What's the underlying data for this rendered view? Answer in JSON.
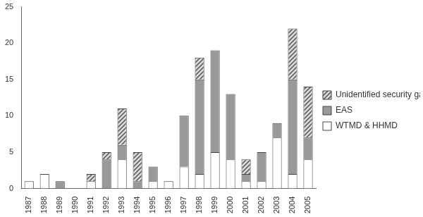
{
  "chart_data": {
    "type": "bar",
    "stacked": true,
    "grid": false,
    "legend": "right",
    "categories": [
      "1987",
      "1988",
      "1989",
      "1990",
      "1991",
      "1992",
      "1993",
      "1994",
      "1995",
      "1996",
      "1997",
      "1998",
      "1999",
      "2000",
      "2001",
      "2002",
      "2003",
      "2004",
      "2005"
    ],
    "series": [
      {
        "name": "WTMD & HHMD",
        "color": "#ffffff",
        "values": [
          1,
          2,
          0,
          0,
          1,
          0,
          4,
          0,
          1,
          1,
          3,
          2,
          5,
          4,
          1,
          1,
          7,
          2,
          4
        ]
      },
      {
        "name": "EAS",
        "color": "#999999",
        "values": [
          0,
          0,
          1,
          0,
          0,
          4,
          2,
          1,
          2,
          0,
          7,
          13,
          14,
          9,
          1,
          4,
          2,
          13,
          3
        ]
      },
      {
        "name": "Unidentified security gate",
        "color": "#d9d9d9",
        "values": [
          0,
          0,
          0,
          0,
          1,
          1,
          5,
          4,
          0,
          0,
          0,
          3,
          0,
          0,
          2,
          0,
          0,
          7,
          7
        ]
      }
    ],
    "ylim": [
      0,
      25
    ],
    "yticks": [
      0,
      5,
      10,
      15,
      20,
      25
    ]
  }
}
